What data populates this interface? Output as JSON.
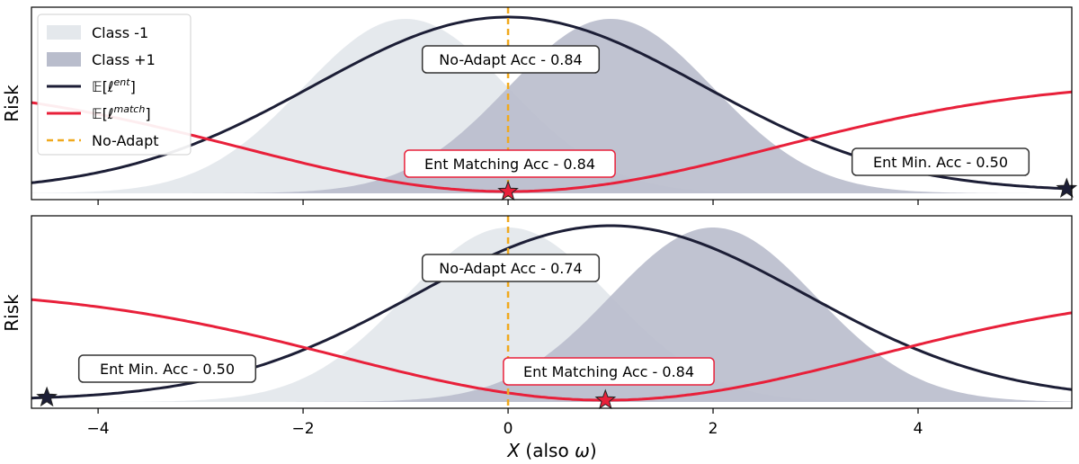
{
  "figure": {
    "xlabel_main": "X",
    "xlabel_suffix": " (also ",
    "xlabel_omega": "ω",
    "xlabel_close": ")"
  },
  "legend": {
    "entries": [
      {
        "label": "Class -1"
      },
      {
        "label": "Class +1"
      },
      {
        "label": "𝔼[ℓ",
        "sup": "ent",
        "tail": "]"
      },
      {
        "label": "𝔼[ℓ",
        "sup": "match",
        "tail": "]"
      },
      {
        "label": "No-Adapt"
      }
    ]
  },
  "colors": {
    "class_neg": "#e4e8ec",
    "class_pos": "#b9bdcc",
    "ent_line": "#1c1e36",
    "match_line": "#e8203a",
    "no_adapt": "#f0a91d",
    "ent_box_edge": "#333333",
    "match_box_edge": "#e8203a"
  },
  "chart_data": [
    {
      "type": "area",
      "panel": "top",
      "ylabel": "Risk",
      "xlim": [
        -4.65,
        5.5
      ],
      "xticks": [
        -4,
        -2,
        0,
        2,
        4
      ],
      "xtick_labels": [
        "−4",
        "−2",
        "0",
        "2",
        "4"
      ],
      "class_neg": {
        "mean": -1.0,
        "sd": 1.0
      },
      "class_pos": {
        "mean": 1.0,
        "sd": 1.0
      },
      "entropy_risk_peak_x": 0.0,
      "entropy_risk_width": 1.9,
      "matching_risk_min_x": 0.0,
      "matching_risk_width": 2.6,
      "no_adapt_x": 0.0,
      "stars": [
        {
          "name": "ent-matching-star",
          "x": 0.0,
          "curve": "match",
          "color": "#e8203a"
        },
        {
          "name": "ent-min-star",
          "x": 5.45,
          "curve": "ent",
          "color": "#1c1e36"
        }
      ],
      "annotations": {
        "no_adapt": "No-Adapt Acc - 0.84",
        "ent_matching": "Ent Matching Acc - 0.84",
        "ent_min": "Ent Min. Acc - 0.50"
      }
    },
    {
      "type": "area",
      "panel": "bottom",
      "ylabel": "Risk",
      "xlim": [
        -4.65,
        5.5
      ],
      "xticks": [
        -4,
        -2,
        0,
        2,
        4
      ],
      "xtick_labels": [
        "−4",
        "−2",
        "0",
        "2",
        "4"
      ],
      "class_neg": {
        "mean": 0.0,
        "sd": 1.0
      },
      "class_pos": {
        "mean": 2.0,
        "sd": 1.0
      },
      "entropy_risk_peak_x": 1.0,
      "entropy_risk_width": 1.9,
      "matching_risk_min_x": 0.95,
      "matching_risk_width": 2.6,
      "no_adapt_x": 0.0,
      "stars": [
        {
          "name": "ent-matching-star",
          "x": 0.95,
          "curve": "match",
          "color": "#e8203a"
        },
        {
          "name": "ent-min-star",
          "x": -4.5,
          "curve": "ent",
          "color": "#1c1e36"
        }
      ],
      "annotations": {
        "no_adapt": "No-Adapt Acc - 0.74",
        "ent_matching": "Ent Matching Acc - 0.84",
        "ent_min": "Ent Min. Acc - 0.50"
      }
    }
  ]
}
